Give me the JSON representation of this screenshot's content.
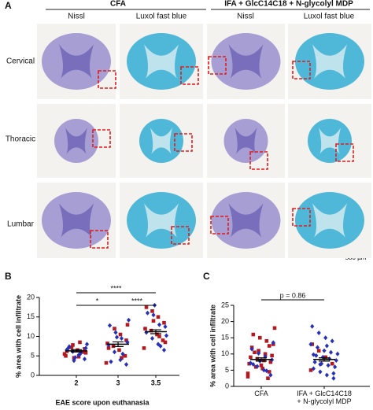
{
  "panel_a": {
    "letter": "A",
    "groups": [
      "CFA",
      "IFA + GlcC14C18 + N-glycolyl MDP"
    ],
    "stains": [
      "Nissl",
      "Luxol fast blue",
      "Nissl",
      "Luxol fast blue"
    ],
    "rows": [
      "Cervical",
      "Thoracic",
      "Lumbar"
    ],
    "scale_bar": "500 µm"
  },
  "chart_data": [
    {
      "type": "dotplot",
      "letter": "B",
      "y_label": "% area with cell infiltrate",
      "x_label": "EAE score upon euthanasia",
      "categories": [
        "2",
        "3",
        "3.5"
      ],
      "ylim": [
        0,
        20
      ],
      "yticks": [
        0,
        5,
        10,
        15,
        20
      ],
      "series": [
        {
          "color": "#b5191f",
          "marker": "square",
          "values": [
            [
              5.5,
              6.0,
              6.5,
              7.2,
              5.0,
              6.8,
              4.8,
              7.8,
              6.2,
              5.8,
              8.5,
              4.5
            ],
            [
              3.2,
              5.0,
              6.5,
              7.5,
              8.2,
              9.0,
              10.5,
              12.0,
              7.0,
              13.0,
              4.5
            ],
            [
              7.0,
              9.0,
              10.5,
              11.5,
              12.0,
              13.5,
              15.0,
              16.5,
              17.5,
              8.5,
              10.0,
              14.0
            ]
          ]
        },
        {
          "color": "#2630b8",
          "marker": "diamond",
          "values": [
            [
              4.2,
              5.2,
              6.1,
              6.6,
              7.0,
              5.4,
              3.8,
              6.9,
              8.0,
              5.9,
              4.6,
              7.4
            ],
            [
              2.8,
              4.0,
              6.0,
              7.8,
              8.5,
              9.5,
              11.0,
              12.8,
              14.2,
              5.5,
              9.8,
              3.5
            ],
            [
              6.5,
              8.0,
              9.5,
              11.0,
              12.5,
              13.0,
              15.5,
              16.0,
              10.2,
              7.5,
              18.0
            ]
          ]
        }
      ],
      "means": [
        6.3,
        8.0,
        11.2
      ],
      "sem": [
        0.3,
        0.6,
        0.5
      ],
      "annotations": [
        {
          "text": "*",
          "from": 0,
          "to": 1
        },
        {
          "text": "****",
          "from": 0,
          "to": 2
        },
        {
          "text": "****",
          "from": 1,
          "to": 2
        }
      ]
    },
    {
      "type": "dotplot",
      "letter": "C",
      "y_label": "% area with cell infiltrate",
      "categories": [
        "CFA",
        "IFA + GlcC14C18 + N-glycolyl MDP"
      ],
      "ylim": [
        0,
        25
      ],
      "yticks": [
        0,
        5,
        10,
        15,
        20,
        25
      ],
      "series": [
        {
          "color": "#b5191f",
          "marker": "square",
          "values": [
            [
              3,
              4.5,
              5.5,
              6,
              7,
              7.5,
              8,
              8.5,
              9,
              9.5,
              10,
              11,
              12,
              13,
              14,
              15,
              16,
              18,
              2.5,
              6.5,
              10.5,
              4,
              12.5
            ],
            [
              5,
              7,
              9,
              11,
              13
            ]
          ]
        },
        {
          "color": "#2630b8",
          "marker": "diamond",
          "values": [
            [
              3.5,
              5,
              6.2,
              7.2,
              8.2,
              9.2,
              10.2,
              11.5,
              13.5,
              4.8,
              7.8,
              6.8
            ],
            [
              2.5,
              3.5,
              4.5,
              5.5,
              6,
              6.5,
              7,
              7.5,
              8,
              8.5,
              9,
              9.5,
              10,
              10.5,
              11,
              12,
              13,
              14,
              15,
              16.5,
              18.5,
              4,
              12.5,
              6.8,
              9.8
            ]
          ]
        }
      ],
      "means": [
        8.3,
        8.3
      ],
      "sem": [
        0.5,
        0.5
      ],
      "annotations": [
        {
          "text": "p = 0.86",
          "from": 0,
          "to": 1
        }
      ]
    }
  ]
}
